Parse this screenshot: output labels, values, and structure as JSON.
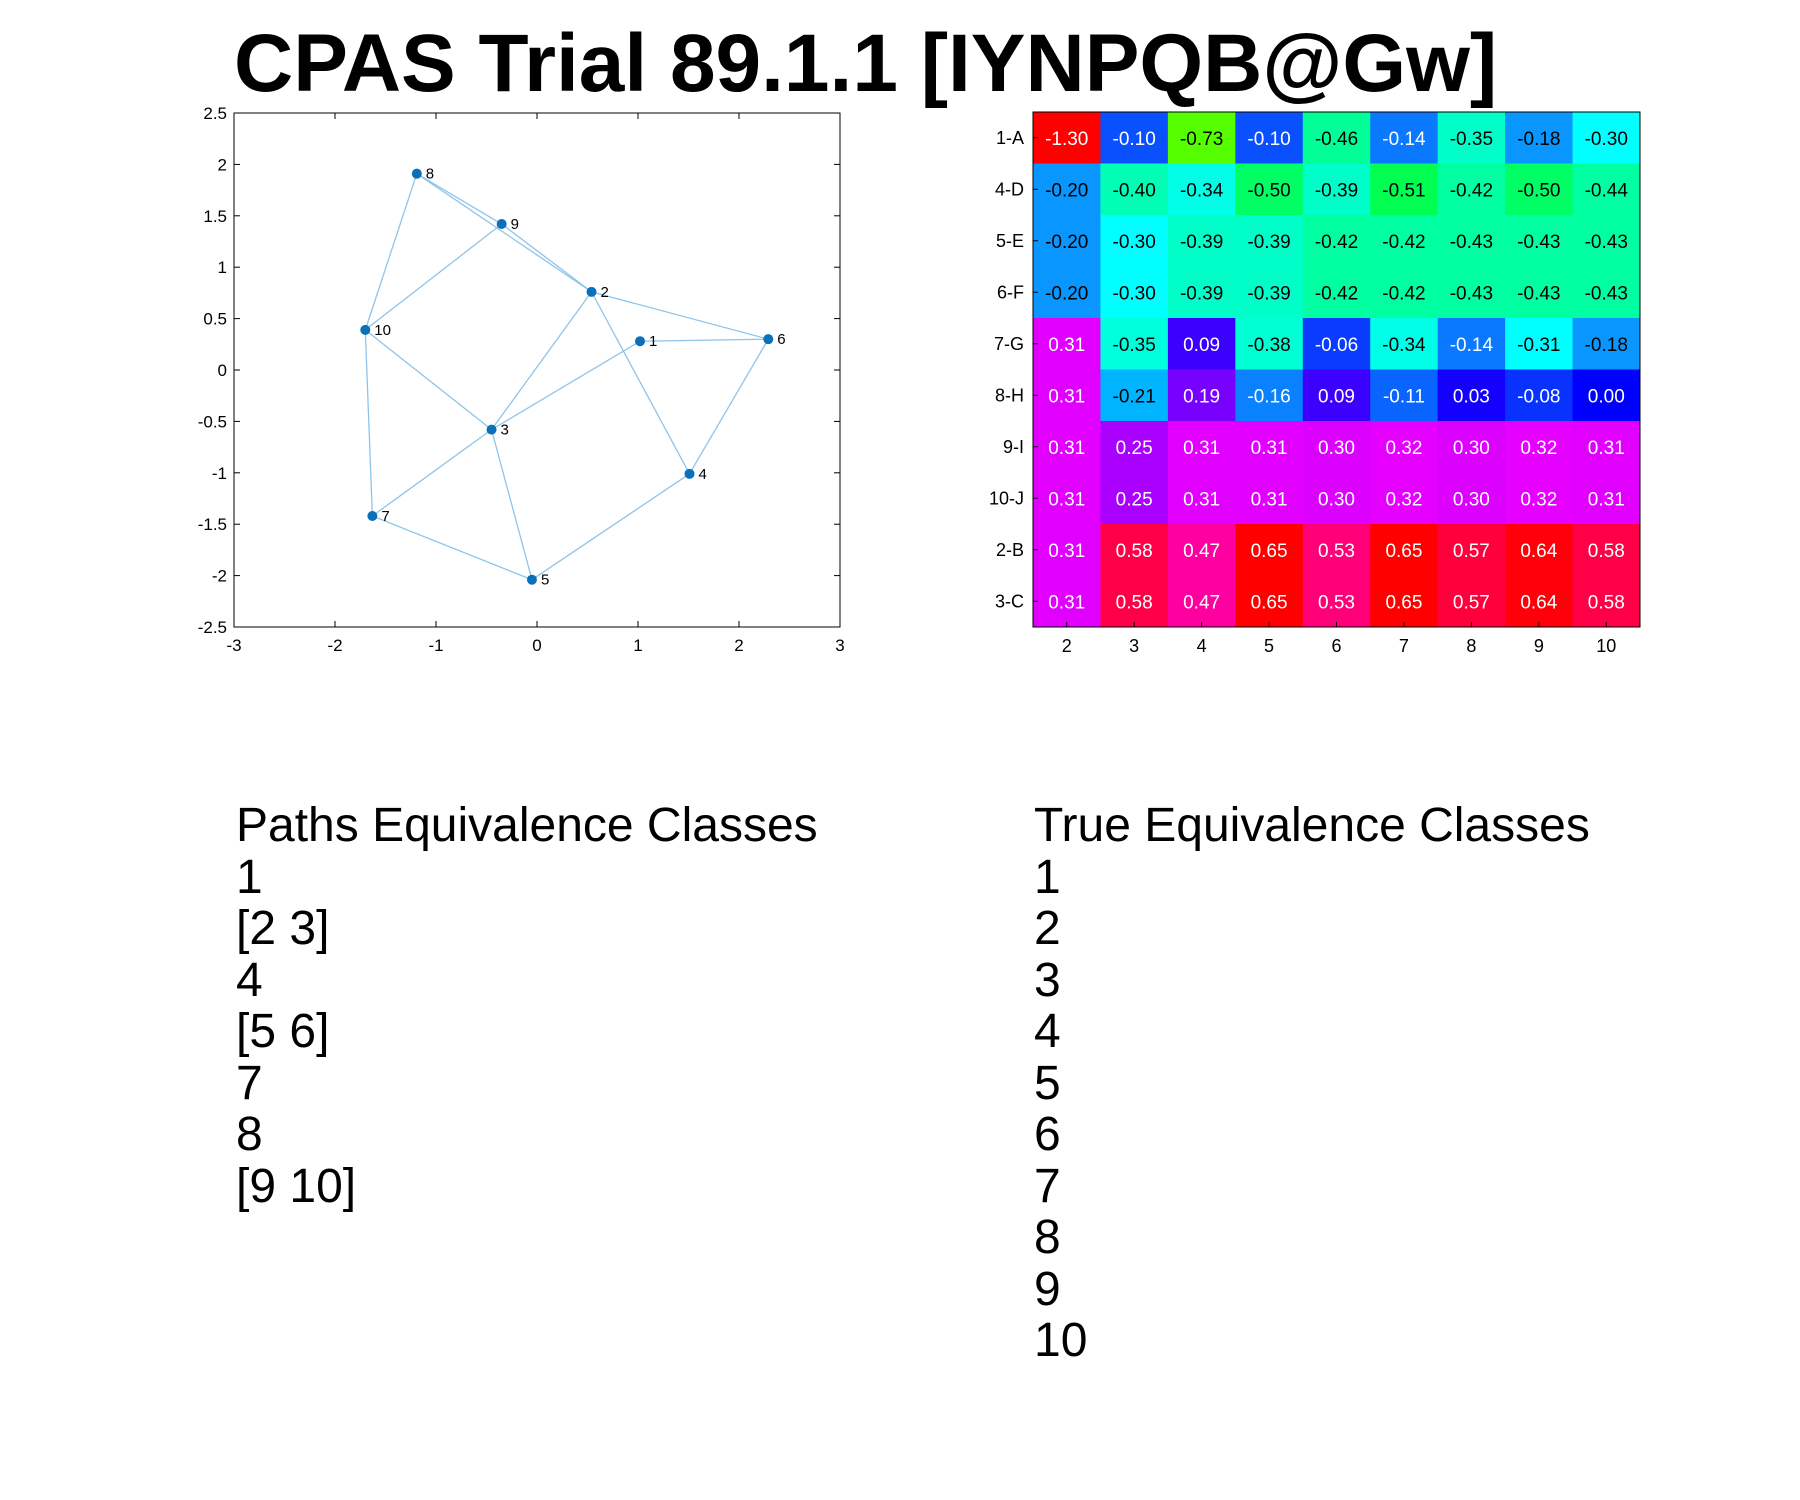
{
  "title": "CPAS Trial 89.1.1 [IYNPQB@Gw]",
  "chart_data": [
    {
      "type": "scatter",
      "subtype": "network-graph",
      "xlim": [
        -3,
        3
      ],
      "ylim": [
        -2.5,
        2.5
      ],
      "xticks": [
        "-3",
        "-2",
        "-1",
        "0",
        "1",
        "2",
        "3"
      ],
      "yticks": [
        "2.5",
        "2",
        "1.5",
        "1",
        "0.5",
        "0",
        "-0.5",
        "-1",
        "-1.5",
        "-2",
        "-2.5"
      ],
      "grid": false,
      "node_color": "#0b6fba",
      "edge_color": "#8ec4ea",
      "nodes": [
        {
          "label": "1",
          "x": 1.02,
          "y": 0.28
        },
        {
          "label": "2",
          "x": 0.54,
          "y": 0.76
        },
        {
          "label": "3",
          "x": -0.45,
          "y": -0.58
        },
        {
          "label": "4",
          "x": 1.51,
          "y": -1.01
        },
        {
          "label": "5",
          "x": -0.05,
          "y": -2.04
        },
        {
          "label": "6",
          "x": 2.29,
          "y": 0.3
        },
        {
          "label": "7",
          "x": -1.63,
          "y": -1.42
        },
        {
          "label": "8",
          "x": -1.19,
          "y": 1.91
        },
        {
          "label": "9",
          "x": -0.35,
          "y": 1.42
        },
        {
          "label": "10",
          "x": -1.7,
          "y": 0.39
        }
      ],
      "edges": [
        [
          "8",
          "9"
        ],
        [
          "8",
          "2"
        ],
        [
          "8",
          "10"
        ],
        [
          "9",
          "2"
        ],
        [
          "9",
          "10"
        ],
        [
          "2",
          "6"
        ],
        [
          "2",
          "3"
        ],
        [
          "2",
          "4"
        ],
        [
          "1",
          "6"
        ],
        [
          "1",
          "3"
        ],
        [
          "6",
          "4"
        ],
        [
          "4",
          "5"
        ],
        [
          "10",
          "3"
        ],
        [
          "10",
          "7"
        ],
        [
          "3",
          "7"
        ],
        [
          "3",
          "5"
        ],
        [
          "7",
          "5"
        ]
      ]
    },
    {
      "type": "heatmap",
      "row_labels": [
        "1-A",
        "4-D",
        "5-E",
        "6-F",
        "7-G",
        "8-H",
        "9-I",
        "10-J",
        "2-B",
        "3-C"
      ],
      "col_labels": [
        "2",
        "3",
        "4",
        "5",
        "6",
        "7",
        "8",
        "9",
        "10"
      ],
      "values": [
        [
          "-1.30",
          "-0.10",
          "-0.73",
          "-0.10",
          "-0.46",
          "-0.14",
          "-0.35",
          "-0.18",
          "-0.30"
        ],
        [
          "-0.20",
          "-0.40",
          "-0.34",
          "-0.50",
          "-0.39",
          "-0.51",
          "-0.42",
          "-0.50",
          "-0.44"
        ],
        [
          "-0.20",
          "-0.30",
          "-0.39",
          "-0.39",
          "-0.42",
          "-0.42",
          "-0.43",
          "-0.43",
          "-0.43"
        ],
        [
          "-0.20",
          "-0.30",
          "-0.39",
          "-0.39",
          "-0.42",
          "-0.42",
          "-0.43",
          "-0.43",
          "-0.43"
        ],
        [
          "0.31",
          "-0.35",
          "0.09",
          "-0.38",
          "-0.06",
          "-0.34",
          "-0.14",
          "-0.31",
          "-0.18"
        ],
        [
          "0.31",
          "-0.21",
          "0.19",
          "-0.16",
          "0.09",
          "-0.11",
          "0.03",
          "-0.08",
          "0.00"
        ],
        [
          "0.31",
          "0.25",
          "0.31",
          "0.31",
          "0.30",
          "0.32",
          "0.30",
          "0.32",
          "0.31"
        ],
        [
          "0.31",
          "0.25",
          "0.31",
          "0.31",
          "0.30",
          "0.32",
          "0.30",
          "0.32",
          "0.31"
        ],
        [
          "0.31",
          "0.58",
          "0.47",
          "0.65",
          "0.53",
          "0.65",
          "0.57",
          "0.64",
          "0.58"
        ],
        [
          "0.31",
          "0.58",
          "0.47",
          "0.65",
          "0.53",
          "0.65",
          "0.57",
          "0.64",
          "0.58"
        ]
      ],
      "colors": [
        [
          "#ff0000",
          "#0a50ff",
          "#55ff00",
          "#0a50ff",
          "#00ff96",
          "#0a78ff",
          "#00ffc8",
          "#0a96ff",
          "#00ffff"
        ],
        [
          "#0a96ff",
          "#00ffb4",
          "#00ffe6",
          "#00ff64",
          "#00ffc8",
          "#00ff50",
          "#00ffa0",
          "#00ff64",
          "#00ffa0"
        ],
        [
          "#0a96ff",
          "#00ffff",
          "#00ffc8",
          "#00ffc8",
          "#00ffa0",
          "#00ffa0",
          "#00ffa0",
          "#00ffa0",
          "#00ffa0"
        ],
        [
          "#0a96ff",
          "#00ffff",
          "#00ffc8",
          "#00ffc8",
          "#00ffa0",
          "#00ffa0",
          "#00ffa0",
          "#00ffa0",
          "#00ffa0"
        ],
        [
          "#e100ff",
          "#00ffdc",
          "#3c00ff",
          "#00ffd2",
          "#0a3cff",
          "#00ffe6",
          "#0a78ff",
          "#00ffff",
          "#0a96ff"
        ],
        [
          "#e100ff",
          "#00b4ff",
          "#7800ff",
          "#0a82ff",
          "#3c00ff",
          "#0a64ff",
          "#1400ff",
          "#0a32ff",
          "#0000ff"
        ],
        [
          "#e100ff",
          "#aa00ff",
          "#e100ff",
          "#e100ff",
          "#dc00ff",
          "#e600ff",
          "#dc00ff",
          "#e600ff",
          "#e100ff"
        ],
        [
          "#e100ff",
          "#aa00ff",
          "#e100ff",
          "#e100ff",
          "#dc00ff",
          "#e600ff",
          "#dc00ff",
          "#e600ff",
          "#e100ff"
        ],
        [
          "#e100ff",
          "#ff0046",
          "#ff00a0",
          "#ff0000",
          "#ff0078",
          "#ff0000",
          "#ff003c",
          "#ff000a",
          "#ff0046"
        ],
        [
          "#e100ff",
          "#ff0046",
          "#ff00a0",
          "#ff0000",
          "#ff0078",
          "#ff0000",
          "#ff003c",
          "#ff000a",
          "#ff0046"
        ]
      ]
    }
  ],
  "paths_classes": {
    "heading": "Paths Equivalence Classes",
    "items": [
      "1",
      "[2 3]",
      "4",
      "[5 6]",
      "7",
      "8",
      "[9 10]"
    ]
  },
  "true_classes": {
    "heading": "True Equivalence Classes",
    "items": [
      "1",
      "2",
      "3",
      "4",
      "5",
      "6",
      "7",
      "8",
      "9",
      "10"
    ]
  }
}
